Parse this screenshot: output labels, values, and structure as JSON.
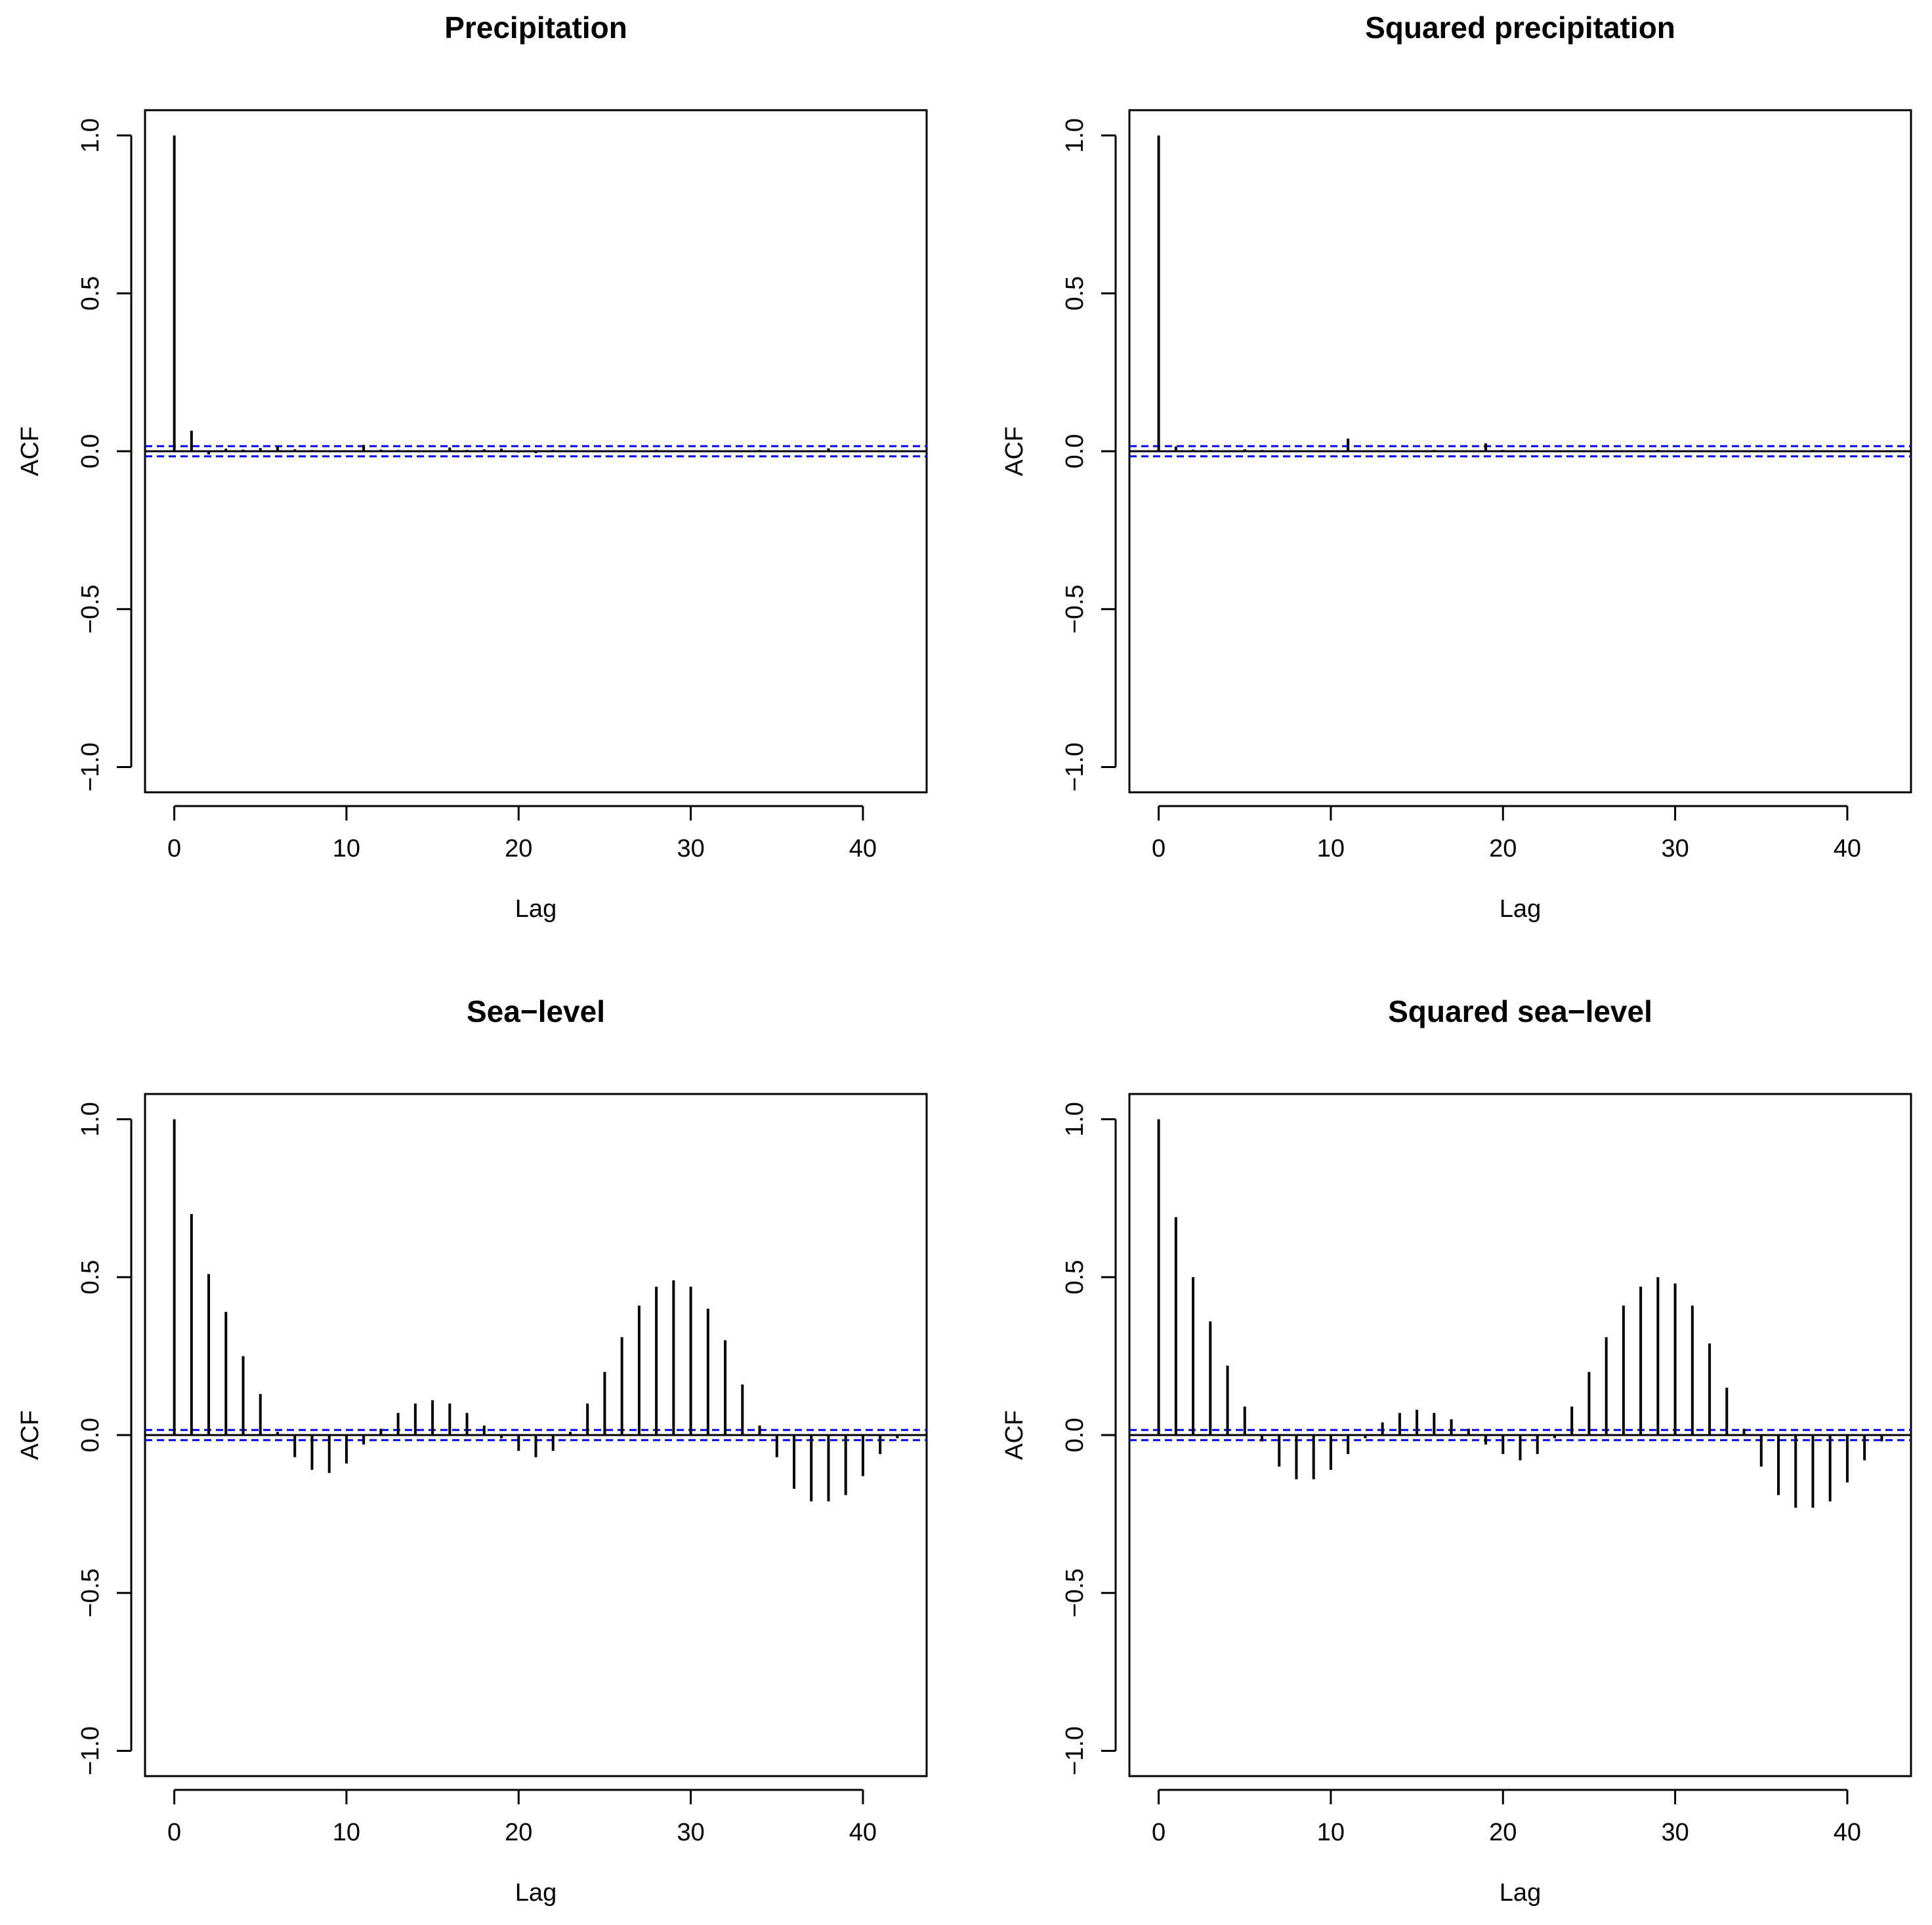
{
  "figure": {
    "layout": "2x2 grid"
  },
  "colors": {
    "bars": "#000000",
    "ci": "#0000ff",
    "zero": "#000000",
    "frame": "#000000"
  },
  "chart_data": [
    {
      "type": "bar",
      "subtype": "acf",
      "title": "Precipitation",
      "xlabel": "Lag",
      "ylabel": "ACF",
      "xlim": [
        -1.7,
        43.7
      ],
      "ylim": [
        -1.08,
        1.08
      ],
      "xticks": [
        0,
        10,
        20,
        30,
        40
      ],
      "xtick_labels": [
        "0",
        "10",
        "20",
        "30",
        "40"
      ],
      "yticks": [
        -1.0,
        -0.5,
        0.0,
        0.5,
        1.0
      ],
      "ytick_labels": [
        "−1.0",
        "−0.5",
        "0.0",
        "0.5",
        "1.0"
      ],
      "ci": 0.016,
      "lags": [
        0,
        1,
        2,
        3,
        4,
        5,
        6,
        7,
        8,
        9,
        10,
        11,
        12,
        13,
        14,
        15,
        16,
        17,
        18,
        19,
        20,
        21,
        22,
        23,
        24,
        25,
        26,
        27,
        28,
        29,
        30,
        31,
        32,
        33,
        34,
        35,
        36,
        37,
        38,
        39,
        40,
        41,
        42,
        43
      ],
      "values": [
        1.0,
        0.065,
        -0.01,
        0.008,
        0.005,
        0.01,
        0.015,
        0.006,
        0.004,
        0.003,
        0.002,
        0.02,
        0.005,
        0.004,
        0.003,
        0.002,
        0.012,
        0.004,
        0.006,
        0.008,
        -0.004,
        -0.006,
        0.004,
        0.003,
        0.002,
        0.003,
        0.003,
        0.002,
        0.004,
        0.003,
        0.002,
        0.003,
        0.002,
        0.002,
        0.004,
        0.002,
        0.003,
        0.002,
        0.009,
        0.003,
        0.002,
        0.003,
        0.002,
        0.002
      ]
    },
    {
      "type": "bar",
      "subtype": "acf",
      "title": "Squared precipitation",
      "xlabel": "Lag",
      "ylabel": "ACF",
      "xlim": [
        -1.7,
        43.7
      ],
      "ylim": [
        -1.08,
        1.08
      ],
      "xticks": [
        0,
        10,
        20,
        30,
        40
      ],
      "xtick_labels": [
        "0",
        "10",
        "20",
        "30",
        "40"
      ],
      "yticks": [
        -1.0,
        -0.5,
        0.0,
        0.5,
        1.0
      ],
      "ytick_labels": [
        "−1.0",
        "−0.5",
        "0.0",
        "0.5",
        "1.0"
      ],
      "ci": 0.016,
      "lags": [
        0,
        1,
        2,
        3,
        4,
        5,
        6,
        7,
        8,
        9,
        10,
        11,
        12,
        13,
        14,
        15,
        16,
        17,
        18,
        19,
        20,
        21,
        22,
        23,
        24,
        25,
        26,
        27,
        28,
        29,
        30,
        31,
        32,
        33,
        34,
        35,
        36,
        37,
        38,
        39,
        40,
        41,
        42,
        43
      ],
      "values": [
        1.0,
        0.015,
        0.005,
        0.004,
        0.003,
        0.006,
        0.004,
        0.003,
        0.002,
        0.003,
        0.002,
        0.04,
        0.003,
        0.002,
        0.003,
        0.002,
        0.004,
        0.003,
        0.002,
        0.025,
        0.004,
        0.003,
        0.002,
        0.003,
        0.002,
        0.003,
        0.002,
        0.003,
        0.002,
        0.004,
        0.003,
        0.002,
        0.003,
        0.002,
        0.003,
        0.002,
        0.003,
        0.002,
        0.004,
        0.003,
        0.002,
        0.003,
        0.002,
        0.002
      ]
    },
    {
      "type": "bar",
      "subtype": "acf",
      "title": "Sea−level",
      "xlabel": "Lag",
      "ylabel": "ACF",
      "xlim": [
        -1.7,
        43.7
      ],
      "ylim": [
        -1.08,
        1.08
      ],
      "xticks": [
        0,
        10,
        20,
        30,
        40
      ],
      "xtick_labels": [
        "0",
        "10",
        "20",
        "30",
        "40"
      ],
      "yticks": [
        -1.0,
        -0.5,
        0.0,
        0.5,
        1.0
      ],
      "ytick_labels": [
        "−1.0",
        "−0.5",
        "0.0",
        "0.5",
        "1.0"
      ],
      "ci": 0.016,
      "lags": [
        0,
        1,
        2,
        3,
        4,
        5,
        6,
        7,
        8,
        9,
        10,
        11,
        12,
        13,
        14,
        15,
        16,
        17,
        18,
        19,
        20,
        21,
        22,
        23,
        24,
        25,
        26,
        27,
        28,
        29,
        30,
        31,
        32,
        33,
        34,
        35,
        36,
        37,
        38,
        39,
        40,
        41,
        42,
        43
      ],
      "values": [
        1.0,
        0.7,
        0.51,
        0.39,
        0.25,
        0.13,
        0.01,
        -0.07,
        -0.11,
        -0.12,
        -0.09,
        -0.03,
        0.02,
        0.07,
        0.1,
        0.11,
        0.1,
        0.07,
        0.03,
        -0.01,
        -0.05,
        -0.07,
        -0.05,
        0.01,
        0.1,
        0.2,
        0.31,
        0.41,
        0.47,
        0.49,
        0.47,
        0.4,
        0.3,
        0.16,
        0.03,
        -0.07,
        -0.17,
        -0.21,
        -0.21,
        -0.19,
        -0.13,
        -0.06,
        -0.01,
        0.0
      ]
    },
    {
      "type": "bar",
      "subtype": "acf",
      "title": "Squared sea−level",
      "xlabel": "Lag",
      "ylabel": "ACF",
      "xlim": [
        -1.7,
        43.7
      ],
      "ylim": [
        -1.08,
        1.08
      ],
      "xticks": [
        0,
        10,
        20,
        30,
        40
      ],
      "xtick_labels": [
        "0",
        "10",
        "20",
        "30",
        "40"
      ],
      "yticks": [
        -1.0,
        -0.5,
        0.0,
        0.5,
        1.0
      ],
      "ytick_labels": [
        "−1.0",
        "−0.5",
        "0.0",
        "0.5",
        "1.0"
      ],
      "ci": 0.016,
      "lags": [
        0,
        1,
        2,
        3,
        4,
        5,
        6,
        7,
        8,
        9,
        10,
        11,
        12,
        13,
        14,
        15,
        16,
        17,
        18,
        19,
        20,
        21,
        22,
        23,
        24,
        25,
        26,
        27,
        28,
        29,
        30,
        31,
        32,
        33,
        34,
        35,
        36,
        37,
        38,
        39,
        40,
        41,
        42,
        43
      ],
      "values": [
        1.0,
        0.69,
        0.5,
        0.36,
        0.22,
        0.09,
        -0.02,
        -0.1,
        -0.14,
        -0.14,
        -0.11,
        -0.06,
        -0.01,
        0.04,
        0.07,
        0.08,
        0.07,
        0.05,
        0.02,
        -0.03,
        -0.06,
        -0.08,
        -0.06,
        -0.01,
        0.09,
        0.2,
        0.31,
        0.41,
        0.47,
        0.5,
        0.48,
        0.41,
        0.29,
        0.15,
        0.02,
        -0.1,
        -0.19,
        -0.23,
        -0.23,
        -0.21,
        -0.15,
        -0.08,
        -0.02,
        0.0
      ]
    }
  ]
}
